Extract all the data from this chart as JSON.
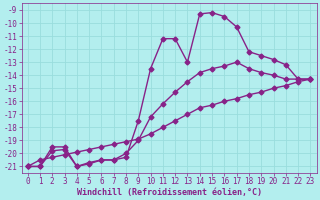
{
  "xlabel": "Windchill (Refroidissement éolien,°C)",
  "bg_color": "#b3eeee",
  "grid_color": "#99dddd",
  "line_color": "#882288",
  "ylim": [
    -21.5,
    -8.5
  ],
  "xlim": [
    -0.5,
    23.5
  ],
  "yticks": [
    -21,
    -20,
    -19,
    -18,
    -17,
    -16,
    -15,
    -14,
    -13,
    -12,
    -11,
    -10,
    -9
  ],
  "xticks": [
    0,
    1,
    2,
    3,
    4,
    5,
    6,
    7,
    8,
    9,
    10,
    11,
    12,
    13,
    14,
    15,
    16,
    17,
    18,
    19,
    20,
    21,
    22,
    23
  ],
  "curve1_x": [
    0,
    1,
    2,
    3,
    4,
    5,
    6,
    7,
    8,
    9,
    10,
    11,
    12,
    13,
    14,
    15,
    16,
    17,
    18,
    19,
    20,
    21,
    22,
    23
  ],
  "curve1_y": [
    -21.0,
    -21.0,
    -19.5,
    -19.5,
    -21.0,
    -20.8,
    -20.5,
    -20.5,
    -20.3,
    -17.5,
    -13.5,
    -11.2,
    -11.2,
    -13.0,
    -9.3,
    -9.2,
    -9.5,
    -10.3,
    -12.2,
    -12.5,
    -12.8,
    -13.2,
    -14.3,
    -14.3
  ],
  "curve2_x": [
    0,
    1,
    2,
    3,
    4,
    5,
    6,
    7,
    8,
    9,
    10,
    11,
    12,
    13,
    14,
    15,
    16,
    17,
    18,
    19,
    20,
    21,
    22,
    23
  ],
  "curve2_y": [
    -21.0,
    -21.0,
    -19.8,
    -19.7,
    -21.0,
    -20.7,
    -20.5,
    -20.5,
    -20.0,
    -19.0,
    -17.2,
    -16.2,
    -15.3,
    -14.5,
    -13.8,
    -13.5,
    -13.3,
    -13.0,
    -13.5,
    -13.8,
    -14.0,
    -14.3,
    -14.3,
    -14.3
  ],
  "curve3_x": [
    0,
    1,
    2,
    3,
    4,
    5,
    6,
    7,
    8,
    9,
    10,
    11,
    12,
    13,
    14,
    15,
    16,
    17,
    18,
    19,
    20,
    21,
    22,
    23
  ],
  "curve3_y": [
    -21.0,
    -20.5,
    -20.3,
    -20.1,
    -19.9,
    -19.7,
    -19.5,
    -19.3,
    -19.1,
    -18.9,
    -18.5,
    -18.0,
    -17.5,
    -17.0,
    -16.5,
    -16.3,
    -16.0,
    -15.8,
    -15.5,
    -15.3,
    -15.0,
    -14.8,
    -14.5,
    -14.3
  ],
  "marker": "D",
  "markersize": 2.5,
  "linewidth": 1.0,
  "tick_fontsize": 5.5,
  "label_fontsize": 6.0
}
